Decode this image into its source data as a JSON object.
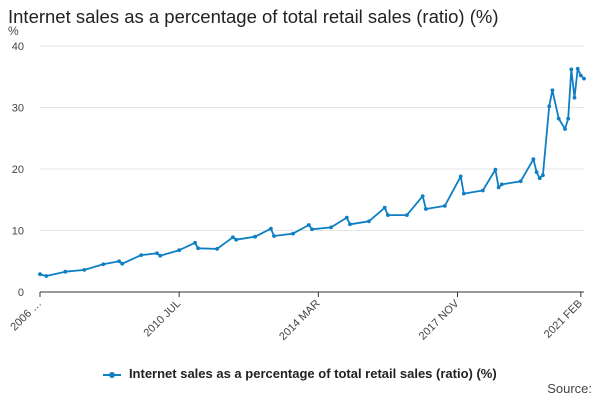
{
  "chart_data": {
    "type": "line",
    "title": "Internet sales as a percentage of total retail sales (ratio) (%)",
    "ylabel": "%",
    "ylim": [
      0,
      40
    ],
    "yticks": [
      0,
      10,
      20,
      30,
      40
    ],
    "x_range": [
      "2006 NOV",
      "2021 MAR"
    ],
    "xtick_labels": [
      "2006 …",
      "2010 JUL",
      "2014 MAR",
      "2017 NOV",
      "2021 FEB"
    ],
    "xtick_positions": [
      "2006 NOV",
      "2010 JUL",
      "2014 MAR",
      "2017 NOV",
      "2021 FEB"
    ],
    "grid": "horizontal",
    "legend_position": "bottom",
    "colors": {
      "line": "#0f7fc4"
    },
    "series": [
      {
        "name": "Internet sales as a percentage of total retail sales (ratio) (%)",
        "x": [
          "2006 NOV",
          "2007 JAN",
          "2007 JUL",
          "2008 JAN",
          "2008 JUL",
          "2008 DEC",
          "2009 JAN",
          "2009 JUL",
          "2009 DEC",
          "2010 JAN",
          "2010 JUL",
          "2010 DEC",
          "2011 JAN",
          "2011 JUL",
          "2011 DEC",
          "2012 JAN",
          "2012 JUL",
          "2012 DEC",
          "2013 JAN",
          "2013 JUL",
          "2013 DEC",
          "2014 JAN",
          "2014 JUL",
          "2014 DEC",
          "2015 JAN",
          "2015 JUL",
          "2015 DEC",
          "2016 JAN",
          "2016 JUL",
          "2016 DEC",
          "2017 JAN",
          "2017 JUL",
          "2017 DEC",
          "2018 JAN",
          "2018 JUL",
          "2018 NOV",
          "2018 DEC",
          "2019 JAN",
          "2019 JUL",
          "2019 NOV",
          "2019 DEC",
          "2020 JAN",
          "2020 FEB",
          "2020 APR",
          "2020 MAY",
          "2020 JUL",
          "2020 SEP",
          "2020 OCT",
          "2020 NOV",
          "2020 DEC",
          "2021 JAN",
          "2021 FEB",
          "2021 MAR"
        ],
        "values": [
          2.9,
          2.6,
          3.3,
          3.6,
          4.5,
          5.0,
          4.6,
          6.0,
          6.3,
          5.9,
          6.8,
          8.0,
          7.1,
          7.0,
          8.9,
          8.5,
          9.0,
          10.3,
          9.1,
          9.5,
          10.9,
          10.2,
          10.5,
          12.1,
          11.0,
          11.5,
          13.7,
          12.5,
          12.5,
          15.6,
          13.5,
          14.0,
          18.8,
          16.0,
          16.5,
          19.9,
          17.0,
          17.5,
          18.0,
          21.6,
          19.5,
          18.5,
          19.0,
          30.2,
          32.8,
          28.2,
          26.5,
          28.2,
          36.2,
          31.6,
          36.3,
          35.2,
          34.7
        ]
      }
    ]
  },
  "legend": {
    "label": "Internet sales as a percentage of total retail sales (ratio) (%)"
  },
  "source": "Source:"
}
